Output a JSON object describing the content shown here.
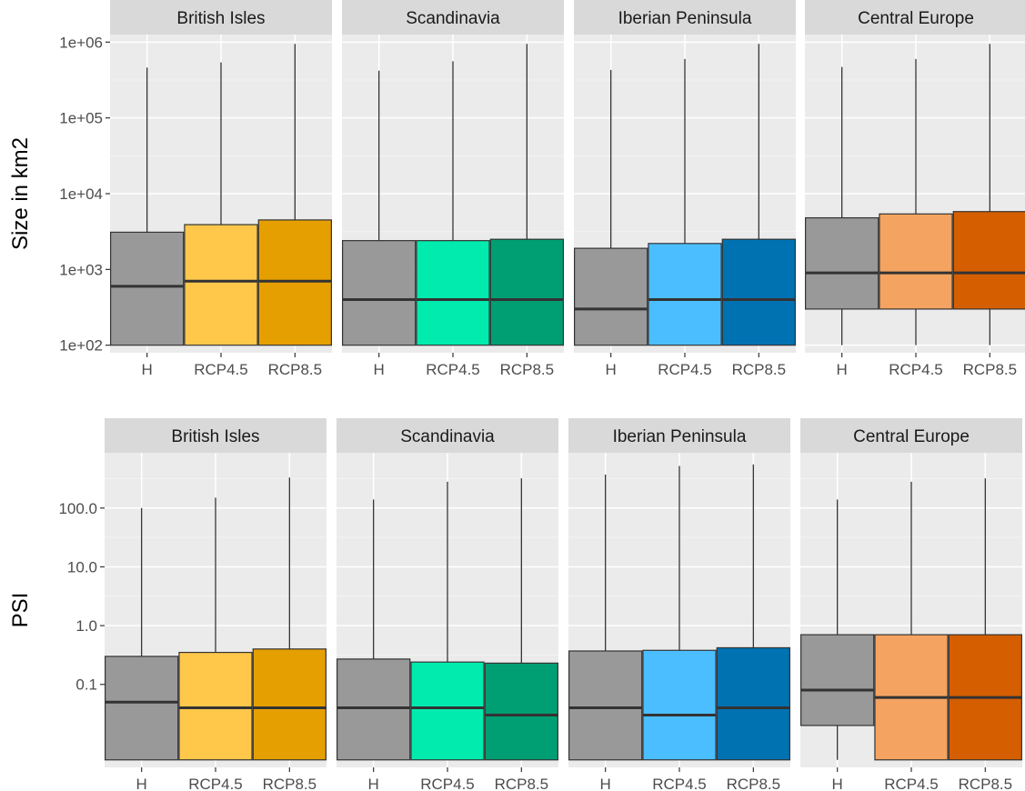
{
  "colors": {
    "panel_bg": "#EBEBEB",
    "strip_bg": "#D9D9D9",
    "grid_major": "#FFFFFF",
    "grid_minor": "#F5F5F5",
    "box_border": "#333333",
    "historical": "#999999",
    "regions": {
      "British Isles": [
        "#FFC84A",
        "#E69F00"
      ],
      "Scandinavia": [
        "#00EBAD",
        "#009E73"
      ],
      "Iberian Peninsula": [
        "#4BBEFF",
        "#0072B2"
      ],
      "Central Europe": [
        "#F4A460",
        "#D55E00"
      ]
    }
  },
  "chart_data": [
    {
      "type": "boxplot",
      "ylabel": "Size in km2",
      "yscale": "log10",
      "ylim": [
        100,
        1000000
      ],
      "yticks": [
        100,
        1000,
        10000,
        100000,
        1000000
      ],
      "ytick_labels": [
        "1e+02",
        "1e+03",
        "1e+04",
        "1e+05",
        "1e+06"
      ],
      "categories": [
        "H",
        "RCP4.5",
        "RCP8.5"
      ],
      "panels": [
        {
          "region": "British Isles",
          "boxes": [
            {
              "category": "H",
              "min": 100,
              "q1": 100,
              "median": 600,
              "q3": 3100,
              "max": 460000
            },
            {
              "category": "RCP4.5",
              "min": 100,
              "q1": 100,
              "median": 700,
              "q3": 3900,
              "max": 540000
            },
            {
              "category": "RCP8.5",
              "min": 100,
              "q1": 100,
              "median": 700,
              "q3": 4500,
              "max": 950000
            }
          ]
        },
        {
          "region": "Scandinavia",
          "boxes": [
            {
              "category": "H",
              "min": 100,
              "q1": 100,
              "median": 400,
              "q3": 2400,
              "max": 420000
            },
            {
              "category": "RCP4.5",
              "min": 100,
              "q1": 100,
              "median": 400,
              "q3": 2400,
              "max": 560000
            },
            {
              "category": "RCP8.5",
              "min": 100,
              "q1": 100,
              "median": 400,
              "q3": 2500,
              "max": 950000
            }
          ]
        },
        {
          "region": "Iberian Peninsula",
          "boxes": [
            {
              "category": "H",
              "min": 100,
              "q1": 100,
              "median": 300,
              "q3": 1900,
              "max": 430000
            },
            {
              "category": "RCP4.5",
              "min": 100,
              "q1": 100,
              "median": 400,
              "q3": 2200,
              "max": 600000
            },
            {
              "category": "RCP8.5",
              "min": 100,
              "q1": 100,
              "median": 400,
              "q3": 2500,
              "max": 950000
            }
          ]
        },
        {
          "region": "Central Europe",
          "boxes": [
            {
              "category": "H",
              "min": 100,
              "q1": 300,
              "median": 900,
              "q3": 4800,
              "max": 470000
            },
            {
              "category": "RCP4.5",
              "min": 100,
              "q1": 300,
              "median": 900,
              "q3": 5400,
              "max": 600000
            },
            {
              "category": "RCP8.5",
              "min": 100,
              "q1": 300,
              "median": 900,
              "q3": 5800,
              "max": 950000
            }
          ]
        }
      ]
    },
    {
      "type": "boxplot",
      "ylabel": "PSI",
      "yscale": "log10",
      "ylim": [
        0.0052,
        650
      ],
      "yticks": [
        0.1,
        1,
        10,
        100
      ],
      "ytick_labels": [
        "0.1",
        "1.0",
        "10.0",
        "100.0"
      ],
      "categories": [
        "H",
        "RCP4.5",
        "RCP8.5"
      ],
      "panels": [
        {
          "region": "British Isles",
          "boxes": [
            {
              "category": "H",
              "min": 0.0052,
              "q1": 0.0052,
              "median": 0.05,
              "q3": 0.3,
              "max": 100
            },
            {
              "category": "RCP4.5",
              "min": 0.0052,
              "q1": 0.0052,
              "median": 0.04,
              "q3": 0.35,
              "max": 150
            },
            {
              "category": "RCP8.5",
              "min": 0.0052,
              "q1": 0.0052,
              "median": 0.04,
              "q3": 0.4,
              "max": 330
            }
          ]
        },
        {
          "region": "Scandinavia",
          "boxes": [
            {
              "category": "H",
              "min": 0.0052,
              "q1": 0.0052,
              "median": 0.04,
              "q3": 0.27,
              "max": 140
            },
            {
              "category": "RCP4.5",
              "min": 0.0052,
              "q1": 0.0052,
              "median": 0.04,
              "q3": 0.24,
              "max": 280
            },
            {
              "category": "RCP8.5",
              "min": 0.0052,
              "q1": 0.0052,
              "median": 0.03,
              "q3": 0.23,
              "max": 320
            }
          ]
        },
        {
          "region": "Iberian Peninsula",
          "boxes": [
            {
              "category": "H",
              "min": 0.0052,
              "q1": 0.0052,
              "median": 0.04,
              "q3": 0.37,
              "max": 370
            },
            {
              "category": "RCP4.5",
              "min": 0.0052,
              "q1": 0.0052,
              "median": 0.03,
              "q3": 0.38,
              "max": 520
            },
            {
              "category": "RCP8.5",
              "min": 0.0052,
              "q1": 0.0052,
              "median": 0.04,
              "q3": 0.42,
              "max": 550
            }
          ]
        },
        {
          "region": "Central Europe",
          "boxes": [
            {
              "category": "H",
              "min": 0.0052,
              "q1": 0.02,
              "median": 0.08,
              "q3": 0.7,
              "max": 140
            },
            {
              "category": "RCP4.5",
              "min": 0.0052,
              "q1": 0.0052,
              "median": 0.06,
              "q3": 0.7,
              "max": 280
            },
            {
              "category": "RCP8.5",
              "min": 0.0052,
              "q1": 0.0052,
              "median": 0.06,
              "q3": 0.7,
              "max": 320
            }
          ]
        }
      ]
    }
  ]
}
